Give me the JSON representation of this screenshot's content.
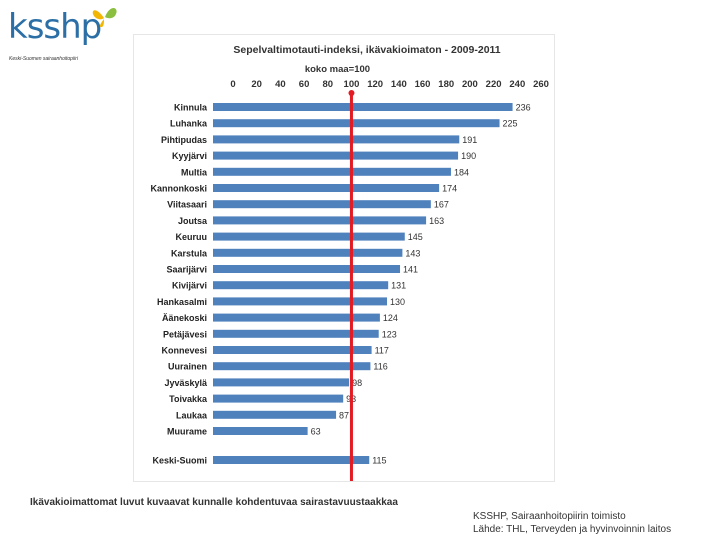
{
  "logo": {
    "name": "ksshp",
    "tagline": "Keski-Suomen sairaanhoitopiiri"
  },
  "caption": "Ikävakioimattomat luvut kuvaavat kunnalle kohdentuvaa sairastavuustaakkaa",
  "source": {
    "line1": "KSSHP, Sairaanhoitopiirin toimisto",
    "line2": "Lähde:  THL, Terveyden ja hyvinvoinnin laitos"
  },
  "colors": {
    "bar": "#4f81bd",
    "reference_line": "#e31b23"
  },
  "chart_data": {
    "type": "bar",
    "orientation": "horizontal",
    "title": "Sepelvaltimotauti-indeksi, ikävakioimaton - 2009-2011",
    "subtitle": "koko maa=100",
    "xlim": [
      0,
      260
    ],
    "ticks": [
      0,
      20,
      40,
      60,
      80,
      100,
      120,
      140,
      160,
      180,
      200,
      220,
      240,
      260
    ],
    "reference_value": 100,
    "categories": [
      "Kinnula",
      "Luhanka",
      "Pihtipudas",
      "Kyyjärvi",
      "Multia",
      "Kannonkoski",
      "Viitasaari",
      "Joutsa",
      "Keuruu",
      "Karstula",
      "Saarijärvi",
      "Kivijärvi",
      "Hankasalmi",
      "Äänekoski",
      "Petäjävesi",
      "Konnevesi",
      "Uurainen",
      "Jyväskylä",
      "Toivakka",
      "Laukaa",
      "Muurame"
    ],
    "values": [
      236,
      225,
      191,
      190,
      184,
      174,
      167,
      163,
      145,
      143,
      141,
      131,
      130,
      124,
      123,
      117,
      116,
      98,
      93,
      87,
      63
    ],
    "total": {
      "label": "Keski-Suomi",
      "value": 115
    }
  }
}
